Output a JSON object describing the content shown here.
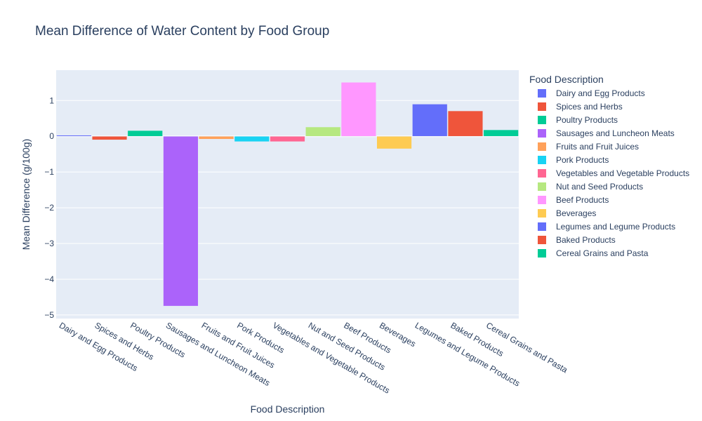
{
  "chart_data": {
    "type": "bar",
    "title": "Mean Difference of Water Content by Food Group",
    "xlabel": "Food Description",
    "ylabel": "Mean Difference (g/100g)",
    "legend_title": "Food Description",
    "legend_placement": "right",
    "grid": true,
    "ylim": [
      -5.1,
      1.85
    ],
    "yticks": [
      1,
      0,
      -1,
      -2,
      -3,
      -4,
      -5
    ],
    "ytick_labels": [
      "1",
      "0",
      "−1",
      "−2",
      "−3",
      "−4",
      "−5"
    ],
    "categories": [
      "Dairy and Egg Products",
      "Spices and Herbs",
      "Poultry Products",
      "Sausages and Luncheon Meats",
      "Fruits and Fruit Juices",
      "Pork Products",
      "Vegetables and Vegetable Products",
      "Nut and Seed Products",
      "Beef Products",
      "Beverages",
      "Legumes and Legume Products",
      "Baked Products",
      "Cereal Grains and Pasta"
    ],
    "values": [
      0.03,
      -0.1,
      0.16,
      -4.75,
      -0.08,
      -0.15,
      -0.15,
      0.26,
      1.51,
      -0.35,
      0.9,
      0.71,
      0.18
    ],
    "colors": [
      "#636efa",
      "#ef553b",
      "#00cc96",
      "#ab63fa",
      "#ffa15a",
      "#19d3f3",
      "#ff6692",
      "#b6e880",
      "#ff97ff",
      "#fecb52",
      "#636efa",
      "#ef553b",
      "#00cc96"
    ],
    "background_color": "#e5ecf6",
    "grid_color": "#ffffff"
  }
}
